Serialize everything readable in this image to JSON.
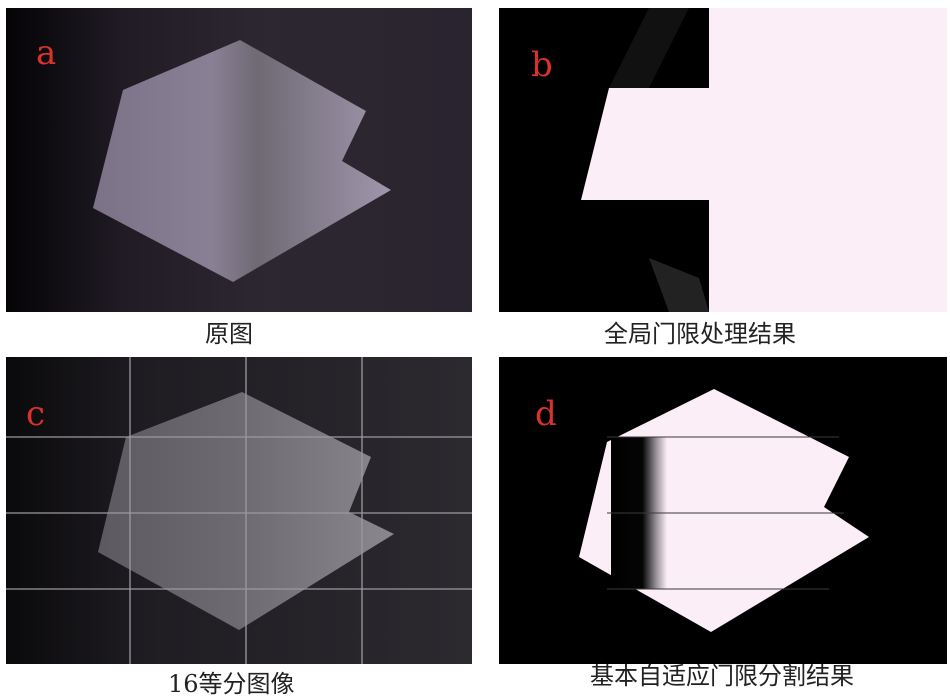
{
  "panels": [
    {
      "letter": "a",
      "caption": "原图"
    },
    {
      "letter": "b",
      "caption": "全局门限处理结果"
    },
    {
      "letter": "c",
      "caption": "16等分图像"
    },
    {
      "letter": "d",
      "caption": "基本自适应门限分割结果"
    }
  ],
  "colors": {
    "letter": "#d8322a",
    "shape_white": "#fbeef6",
    "background_dark": "#1a1820",
    "caption_text": "#222222"
  },
  "grid": {
    "rows": 4,
    "columns": 4,
    "cells": 16
  }
}
